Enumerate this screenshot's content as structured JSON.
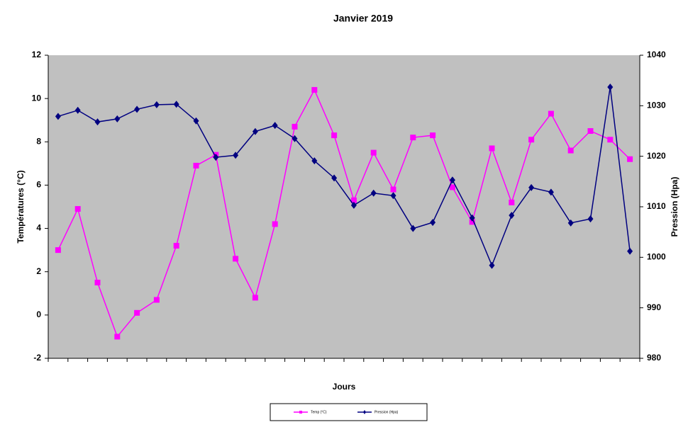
{
  "chart_data": {
    "type": "line",
    "title": "Janvier 2019",
    "x_label": "Jours",
    "y_label": "Températures (°C)",
    "y2_label": "Pression (Hpa)",
    "ylim": [
      -2,
      12
    ],
    "yticks": [
      -2,
      0,
      2,
      4,
      6,
      8,
      10,
      12
    ],
    "y2lim": [
      980,
      1040
    ],
    "y2ticks": [
      980,
      990,
      1000,
      1010,
      1020,
      1030,
      1040
    ],
    "grid": false,
    "legend": "bottom",
    "series": [
      {
        "name": "Temp (°C)",
        "color": "#ff00ff",
        "marker": "square",
        "values": [
          3.0,
          4.9,
          1.5,
          -1.0,
          0.1,
          0.7,
          3.2,
          6.9,
          7.4,
          2.6,
          0.8,
          4.2,
          8.7,
          10.4,
          8.3,
          5.3,
          7.5,
          5.8,
          8.2,
          8.3,
          5.9,
          4.3,
          7.7,
          5.2,
          8.1,
          9.3,
          7.6,
          8.5,
          8.1,
          7.2
        ]
      },
      {
        "name": "Pression (Hpa)",
        "color": "#000080",
        "marker": "diamond",
        "axis": "y2",
        "values": [
          1027.9,
          1029.1,
          1026.8,
          1027.4,
          1029.3,
          1030.2,
          1030.3,
          1027.0,
          1019.8,
          1020.2,
          1024.9,
          1026.1,
          1023.5,
          1019.1,
          1015.7,
          1010.3,
          1012.7,
          1012.2,
          1005.7,
          1006.9,
          1015.3,
          1007.8,
          998.4,
          1008.3,
          1013.8,
          1012.9,
          1006.8,
          1007.6,
          1033.7,
          1001.2
        ]
      }
    ]
  }
}
